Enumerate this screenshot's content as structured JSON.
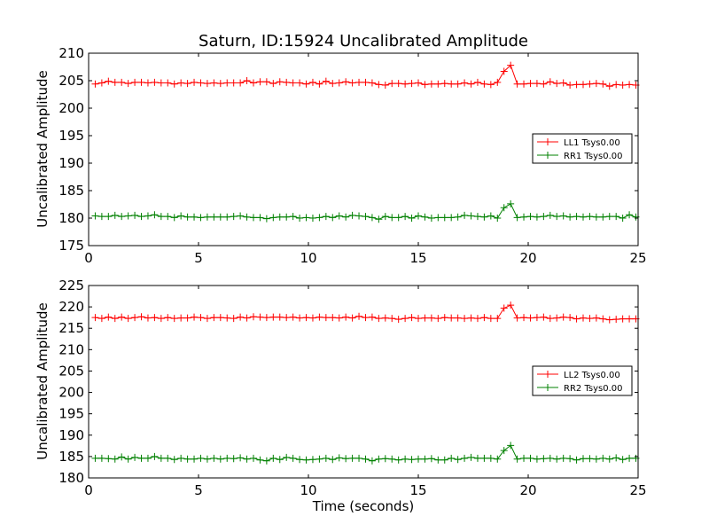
{
  "chart_data": [
    {
      "type": "line",
      "title": "Saturn, ID:15924 Uncalibrated Amplitude",
      "xlabel": "",
      "ylabel": "Uncalibrated Amplitude",
      "xlim": [
        0,
        25
      ],
      "ylim": [
        175,
        210
      ],
      "xticks": [
        0,
        5,
        10,
        15,
        20,
        25
      ],
      "yticks": [
        175,
        180,
        185,
        190,
        195,
        200,
        205,
        210
      ],
      "grid": false,
      "legend_position": "center-right",
      "x": [
        0.3,
        0.6,
        0.9,
        1.2,
        1.5,
        1.8,
        2.1,
        2.4,
        2.7,
        3.0,
        3.3,
        3.6,
        3.9,
        4.2,
        4.5,
        4.8,
        5.1,
        5.4,
        5.7,
        6.0,
        6.3,
        6.6,
        6.9,
        7.2,
        7.5,
        7.8,
        8.1,
        8.4,
        8.7,
        9.0,
        9.3,
        9.6,
        9.9,
        10.2,
        10.5,
        10.8,
        11.1,
        11.4,
        11.7,
        12.0,
        12.3,
        12.6,
        12.9,
        13.2,
        13.5,
        13.8,
        14.1,
        14.4,
        14.7,
        15.0,
        15.3,
        15.6,
        15.9,
        16.2,
        16.5,
        16.8,
        17.1,
        17.4,
        17.7,
        18.0,
        18.3,
        18.6,
        18.9,
        19.2,
        19.5,
        19.8,
        20.1,
        20.4,
        20.7,
        21.0,
        21.3,
        21.6,
        21.9,
        22.2,
        22.5,
        22.8,
        23.1,
        23.4,
        23.7,
        24.0,
        24.3,
        24.6,
        24.9
      ],
      "series": [
        {
          "name": "LL1 Tsys0.00",
          "color": "#ff0000",
          "values": [
            204.4,
            204.6,
            204.9,
            204.7,
            204.7,
            204.5,
            204.7,
            204.7,
            204.6,
            204.7,
            204.6,
            204.6,
            204.4,
            204.6,
            204.5,
            204.7,
            204.6,
            204.5,
            204.6,
            204.5,
            204.6,
            204.6,
            204.6,
            205.0,
            204.6,
            204.8,
            204.8,
            204.5,
            204.8,
            204.7,
            204.6,
            204.6,
            204.4,
            204.7,
            204.4,
            204.9,
            204.5,
            204.6,
            204.8,
            204.6,
            204.7,
            204.7,
            204.6,
            204.3,
            204.2,
            204.5,
            204.5,
            204.4,
            204.5,
            204.6,
            204.3,
            204.4,
            204.4,
            204.5,
            204.4,
            204.4,
            204.6,
            204.4,
            204.7,
            204.4,
            204.3,
            204.7,
            206.7,
            207.8,
            204.4,
            204.4,
            204.5,
            204.5,
            204.4,
            204.8,
            204.5,
            204.6,
            204.2,
            204.3,
            204.3,
            204.4,
            204.5,
            204.4,
            204.0,
            204.3,
            204.2,
            204.3,
            204.2
          ]
        },
        {
          "name": "RR1 Tsys0.00",
          "color": "#008000",
          "values": [
            180.4,
            180.3,
            180.3,
            180.5,
            180.3,
            180.4,
            180.5,
            180.3,
            180.4,
            180.6,
            180.3,
            180.3,
            180.1,
            180.4,
            180.2,
            180.2,
            180.1,
            180.2,
            180.2,
            180.2,
            180.2,
            180.3,
            180.4,
            180.2,
            180.1,
            180.1,
            179.9,
            180.1,
            180.2,
            180.2,
            180.3,
            180.0,
            180.1,
            180.0,
            180.1,
            180.3,
            180.1,
            180.4,
            180.2,
            180.5,
            180.4,
            180.3,
            180.1,
            179.8,
            180.3,
            180.1,
            180.1,
            180.3,
            180.0,
            180.4,
            180.2,
            180.0,
            180.1,
            180.1,
            180.1,
            180.2,
            180.5,
            180.4,
            180.3,
            180.2,
            180.4,
            180.0,
            181.9,
            182.6,
            180.1,
            180.2,
            180.3,
            180.2,
            180.3,
            180.5,
            180.3,
            180.4,
            180.2,
            180.3,
            180.2,
            180.3,
            180.2,
            180.2,
            180.3,
            180.3,
            180.0,
            180.6,
            180.2
          ]
        }
      ]
    },
    {
      "type": "line",
      "title": "",
      "xlabel": "Time (seconds)",
      "ylabel": "Uncalibrated Amplitude",
      "xlim": [
        0,
        25
      ],
      "ylim": [
        180,
        225
      ],
      "xticks": [
        0,
        5,
        10,
        15,
        20,
        25
      ],
      "yticks": [
        180,
        185,
        190,
        195,
        200,
        205,
        210,
        215,
        220,
        225
      ],
      "grid": false,
      "legend_position": "center-right",
      "x": [
        0.3,
        0.6,
        0.9,
        1.2,
        1.5,
        1.8,
        2.1,
        2.4,
        2.7,
        3.0,
        3.3,
        3.6,
        3.9,
        4.2,
        4.5,
        4.8,
        5.1,
        5.4,
        5.7,
        6.0,
        6.3,
        6.6,
        6.9,
        7.2,
        7.5,
        7.8,
        8.1,
        8.4,
        8.7,
        9.0,
        9.3,
        9.6,
        9.9,
        10.2,
        10.5,
        10.8,
        11.1,
        11.4,
        11.7,
        12.0,
        12.3,
        12.6,
        12.9,
        13.2,
        13.5,
        13.8,
        14.1,
        14.4,
        14.7,
        15.0,
        15.3,
        15.6,
        15.9,
        16.2,
        16.5,
        16.8,
        17.1,
        17.4,
        17.7,
        18.0,
        18.3,
        18.6,
        18.9,
        19.2,
        19.5,
        19.8,
        20.1,
        20.4,
        20.7,
        21.0,
        21.3,
        21.6,
        21.9,
        22.2,
        22.5,
        22.8,
        23.1,
        23.4,
        23.7,
        24.0,
        24.3,
        24.6,
        24.9
      ],
      "series": [
        {
          "name": "LL2 Tsys0.00",
          "color": "#ff0000",
          "values": [
            217.5,
            217.3,
            217.6,
            217.3,
            217.6,
            217.3,
            217.5,
            217.7,
            217.4,
            217.5,
            217.3,
            217.5,
            217.3,
            217.4,
            217.4,
            217.6,
            217.5,
            217.3,
            217.5,
            217.5,
            217.4,
            217.3,
            217.6,
            217.4,
            217.7,
            217.6,
            217.5,
            217.6,
            217.6,
            217.5,
            217.6,
            217.4,
            217.5,
            217.4,
            217.6,
            217.5,
            217.5,
            217.4,
            217.6,
            217.4,
            217.8,
            217.5,
            217.6,
            217.3,
            217.4,
            217.3,
            217.1,
            217.3,
            217.5,
            217.3,
            217.4,
            217.4,
            217.3,
            217.5,
            217.4,
            217.4,
            217.3,
            217.4,
            217.3,
            217.5,
            217.3,
            217.3,
            219.7,
            220.4,
            217.4,
            217.5,
            217.4,
            217.5,
            217.6,
            217.3,
            217.4,
            217.6,
            217.5,
            217.2,
            217.4,
            217.3,
            217.4,
            217.2,
            217.0,
            217.1,
            217.2,
            217.2,
            217.2
          ]
        },
        {
          "name": "RR2 Tsys0.00",
          "color": "#008000",
          "values": [
            184.6,
            184.6,
            184.5,
            184.4,
            184.9,
            184.4,
            184.8,
            184.6,
            184.6,
            185.0,
            184.6,
            184.6,
            184.3,
            184.6,
            184.4,
            184.4,
            184.6,
            184.4,
            184.6,
            184.4,
            184.6,
            184.5,
            184.7,
            184.4,
            184.6,
            184.2,
            184.0,
            184.6,
            184.3,
            184.8,
            184.6,
            184.3,
            184.2,
            184.3,
            184.4,
            184.6,
            184.3,
            184.7,
            184.5,
            184.6,
            184.6,
            184.4,
            184.0,
            184.4,
            184.5,
            184.4,
            184.2,
            184.4,
            184.3,
            184.4,
            184.4,
            184.5,
            184.2,
            184.2,
            184.6,
            184.3,
            184.6,
            184.8,
            184.6,
            184.6,
            184.6,
            184.4,
            186.4,
            187.6,
            184.4,
            184.6,
            184.6,
            184.4,
            184.5,
            184.6,
            184.4,
            184.6,
            184.5,
            184.2,
            184.5,
            184.5,
            184.4,
            184.6,
            184.4,
            184.7,
            184.3,
            184.6,
            184.6
          ]
        }
      ]
    }
  ]
}
